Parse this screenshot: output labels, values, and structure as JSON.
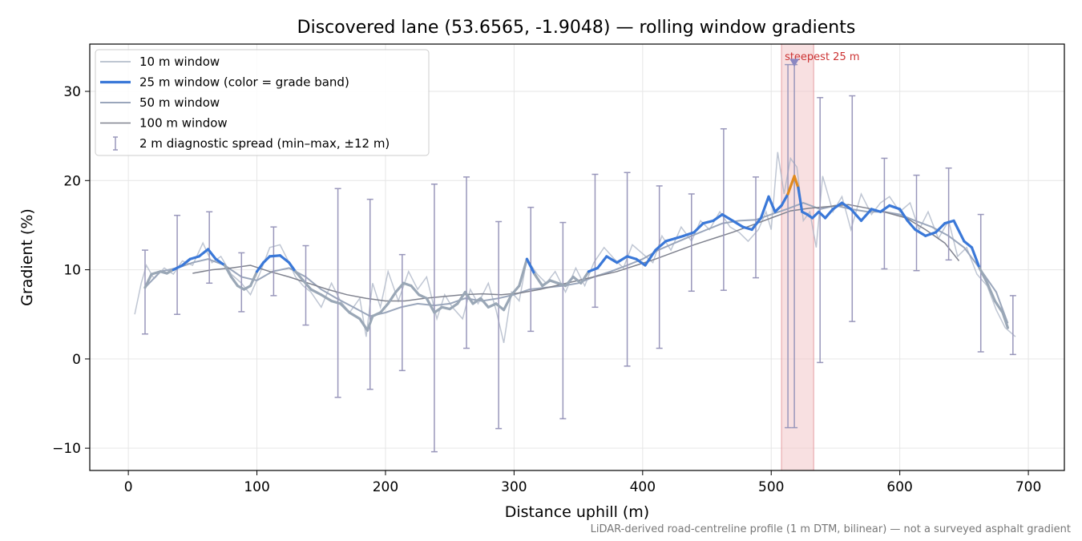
{
  "chart_data": {
    "type": "line",
    "title": "Discovered lane (53.6565, -1.9048) — rolling window gradients",
    "xlabel": "Distance uphill (m)",
    "ylabel": "Gradient (%)",
    "xlim": [
      -30,
      728
    ],
    "ylim": [
      -12.5,
      35.3
    ],
    "xticks": [
      0,
      100,
      200,
      300,
      400,
      500,
      600,
      700
    ],
    "yticks": [
      -10,
      0,
      10,
      20,
      30
    ],
    "xtick_labels": [
      "0",
      "100",
      "200",
      "300",
      "400",
      "500",
      "600",
      "700"
    ],
    "ytick_labels": [
      "−10",
      "0",
      "10",
      "20",
      "30"
    ],
    "grid": true,
    "legend_position": "top-left",
    "footnote": "LiDAR-derived road-centreline profile (1 m DTM, bilinear) — not a surveyed asphalt gradient",
    "highlight": {
      "x_range": [
        508,
        533
      ],
      "label": "steepest 25 m",
      "marker": [
        518,
        33.2
      ]
    },
    "legend": [
      {
        "label": "10 m window",
        "color": "#a9b3c4"
      },
      {
        "label": "25 m window (color = grade band)",
        "color": "#3a78d8"
      },
      {
        "label": "50 m window",
        "color": "#9aa6bb"
      },
      {
        "label": "100 m window",
        "color": "#8a8f9e"
      },
      {
        "label": "2 m diagnostic spread (min–max, ±12 m)",
        "color": "#9997bb"
      }
    ],
    "colors": {
      "band_low": "#9aa7b6",
      "band_mid": "#3a78d8",
      "band_high": "#e08a1e",
      "highlight_fill": "#f2c7c9",
      "highlight_text": "#cc3333",
      "errorbar": "#9997bb"
    },
    "series": [
      {
        "name": "10 m window",
        "x": [
          5,
          10,
          14,
          20,
          28,
          35,
          42,
          50,
          58,
          65,
          72,
          80,
          88,
          95,
          102,
          110,
          118,
          125,
          130,
          136,
          142,
          150,
          158,
          165,
          172,
          180,
          185,
          190,
          196,
          202,
          210,
          218,
          225,
          232,
          240,
          246,
          252,
          260,
          266,
          272,
          280,
          286,
          292,
          298,
          304,
          310,
          318,
          325,
          332,
          340,
          348,
          355,
          362,
          370,
          378,
          385,
          392,
          400,
          408,
          415,
          422,
          430,
          438,
          445,
          452,
          460,
          468,
          475,
          482,
          490,
          496,
          500,
          505,
          510,
          515,
          520,
          525,
          530,
          535,
          540,
          548,
          555,
          562,
          570,
          578,
          585,
          592,
          600,
          608,
          615,
          622,
          630,
          638,
          645,
          652,
          660,
          668,
          675,
          682,
          690
        ],
        "y": [
          5,
          8.5,
          10.5,
          9,
          10.2,
          9.5,
          11,
          10.5,
          13,
          10.8,
          11.5,
          9.5,
          8.5,
          7.2,
          9.5,
          12.5,
          12.8,
          10.8,
          9.2,
          8.2,
          7.5,
          5.8,
          8.5,
          6.5,
          5.2,
          6.8,
          2.5,
          8.5,
          5.8,
          9.8,
          6.5,
          9.8,
          7.8,
          9.2,
          4.5,
          7.2,
          5.8,
          4.5,
          7.8,
          6.2,
          8.5,
          5.5,
          1.8,
          7.5,
          6.5,
          11.2,
          9.5,
          8.5,
          9.8,
          7.5,
          10.2,
          8.2,
          10.8,
          12.5,
          11.2,
          10.2,
          12.8,
          11.8,
          10.8,
          13.8,
          12.2,
          14.8,
          13.2,
          15.5,
          14.5,
          16.5,
          14.8,
          14.2,
          13.2,
          14.5,
          16.5,
          14.5,
          23.2,
          18.5,
          22.5,
          21.5,
          15.5,
          16.5,
          12.5,
          20.5,
          16.5,
          18.2,
          14.5,
          18.5,
          16.2,
          17.5,
          18.2,
          16.5,
          17.5,
          14.5,
          16.5,
          13.5,
          15.5,
          11.5,
          12.5,
          9.5,
          8.2,
          5.5,
          3.5,
          2.5
        ]
      },
      {
        "name": "25 m window (color = grade band)",
        "x": [
          13,
          18,
          25,
          30,
          35,
          42,
          48,
          55,
          62,
          68,
          75,
          80,
          85,
          90,
          95,
          100,
          105,
          110,
          118,
          125,
          130,
          136,
          142,
          150,
          158,
          165,
          172,
          180,
          186,
          190,
          196,
          202,
          208,
          214,
          220,
          226,
          232,
          238,
          244,
          250,
          256,
          262,
          268,
          274,
          280,
          286,
          292,
          298,
          304,
          310,
          316,
          322,
          328,
          334,
          340,
          346,
          352,
          358,
          365,
          372,
          380,
          388,
          395,
          402,
          410,
          418,
          425,
          432,
          440,
          447,
          455,
          462,
          470,
          478,
          485,
          492,
          498,
          503,
          508,
          513,
          518,
          521,
          524,
          528,
          532,
          537,
          542,
          548,
          555,
          562,
          570,
          578,
          585,
          592,
          600,
          606,
          612,
          620,
          628,
          635,
          642,
          650,
          656,
          662,
          668,
          674,
          680,
          684
        ],
        "y": [
          8,
          9.5,
          9.8,
          9.6,
          10,
          10.5,
          11.2,
          11.5,
          12.3,
          11.2,
          10.5,
          9.2,
          8.2,
          7.8,
          8.2,
          9.8,
          10.8,
          11.5,
          11.6,
          10.8,
          9.8,
          8.8,
          7.8,
          7.2,
          6.5,
          6.2,
          5.2,
          4.5,
          3.2,
          4.8,
          5.2,
          6.2,
          7.5,
          8.5,
          8.2,
          7.2,
          6.8,
          5.2,
          5.8,
          5.6,
          6.2,
          7.5,
          6.2,
          6.8,
          5.8,
          6.2,
          5.5,
          7.2,
          8.2,
          11.2,
          9.5,
          8.2,
          8.8,
          8.5,
          8.2,
          9.2,
          8.5,
          9.8,
          10.2,
          11.5,
          10.8,
          11.5,
          11.2,
          10.5,
          12.2,
          13.2,
          13.5,
          13.8,
          14.2,
          15.2,
          15.5,
          16.2,
          15.5,
          14.8,
          14.5,
          15.8,
          18.2,
          16.5,
          17.2,
          18.5,
          20.5,
          19.2,
          16.5,
          16.2,
          15.8,
          16.5,
          15.8,
          16.8,
          17.5,
          16.8,
          15.5,
          16.8,
          16.5,
          17.2,
          16.8,
          15.5,
          14.5,
          13.8,
          14.2,
          15.2,
          15.5,
          13.2,
          12.5,
          10.2,
          8.5,
          6.5,
          5.2,
          3.5
        ]
      },
      {
        "name": "50 m window",
        "x": [
          13,
          25,
          38,
          50,
          62,
          75,
          88,
          100,
          112,
          125,
          138,
          150,
          162,
          175,
          188,
          200,
          212,
          225,
          238,
          250,
          262,
          275,
          288,
          300,
          312,
          325,
          338,
          350,
          362,
          375,
          388,
          400,
          412,
          425,
          438,
          450,
          462,
          475,
          488,
          500,
          512,
          525,
          538,
          550,
          562,
          575,
          588,
          600,
          612,
          625,
          638,
          650,
          662,
          675,
          684
        ],
        "y": [
          8,
          9.8,
          10.2,
          10.8,
          11.2,
          10.5,
          9.2,
          8.8,
          9.8,
          10.2,
          9.2,
          7.8,
          6.8,
          5.8,
          4.8,
          5.2,
          5.8,
          6.2,
          6.0,
          6.2,
          6.8,
          6.5,
          6.8,
          7.2,
          7.8,
          8.0,
          8.2,
          8.5,
          9.2,
          9.8,
          10.5,
          11.2,
          12.2,
          13.0,
          13.8,
          14.5,
          15.2,
          15.5,
          15.6,
          16.2,
          16.8,
          17.5,
          16.8,
          17.2,
          16.8,
          16.5,
          16.5,
          16.2,
          15.5,
          14.8,
          13.8,
          12.5,
          10.2,
          7.5,
          4.0
        ]
      },
      {
        "name": "100 m window",
        "x": [
          50,
          65,
          80,
          95,
          110,
          125,
          140,
          155,
          170,
          185,
          200,
          215,
          230,
          245,
          260,
          275,
          290,
          305,
          320,
          335,
          350,
          365,
          380,
          395,
          410,
          425,
          440,
          455,
          470,
          485,
          500,
          515,
          530,
          545,
          560,
          575,
          590,
          605,
          620,
          635,
          646
        ],
        "y": [
          9.6,
          10.0,
          10.2,
          10.5,
          9.8,
          9.2,
          8.5,
          7.8,
          7.2,
          6.8,
          6.5,
          6.5,
          6.8,
          7.0,
          7.2,
          7.3,
          7.2,
          7.4,
          7.8,
          8.3,
          8.8,
          9.3,
          9.8,
          10.5,
          11.2,
          12.0,
          12.8,
          13.5,
          14.2,
          15.0,
          15.8,
          16.6,
          16.9,
          17.1,
          17.3,
          16.9,
          16.4,
          15.8,
          14.5,
          13.0,
          11.0
        ]
      }
    ],
    "errorbars": {
      "name": "2 m diagnostic spread (min–max, ±12 m)",
      "x": [
        13,
        38,
        63,
        88,
        113,
        138,
        163,
        188,
        213,
        238,
        263,
        288,
        313,
        338,
        363,
        388,
        413,
        438,
        463,
        488,
        513,
        518,
        538,
        563,
        588,
        613,
        638,
        663,
        688
      ],
      "low": [
        2.8,
        5.0,
        8.5,
        5.3,
        7.1,
        3.8,
        -4.3,
        -3.4,
        -1.3,
        -10.4,
        1.2,
        -7.8,
        3.1,
        -6.7,
        5.8,
        -0.8,
        1.2,
        7.6,
        7.7,
        9.1,
        -7.7,
        -7.7,
        -0.4,
        4.2,
        10.1,
        9.9,
        11.1,
        0.8,
        0.5
      ],
      "high": [
        12.2,
        16.1,
        16.5,
        11.9,
        14.8,
        12.7,
        19.1,
        17.9,
        11.7,
        19.6,
        20.4,
        15.4,
        17.0,
        15.3,
        20.7,
        20.9,
        19.4,
        18.5,
        25.8,
        20.4,
        33.0,
        33.0,
        29.3,
        29.5,
        22.5,
        20.6,
        21.4,
        16.2,
        7.1
      ]
    }
  }
}
